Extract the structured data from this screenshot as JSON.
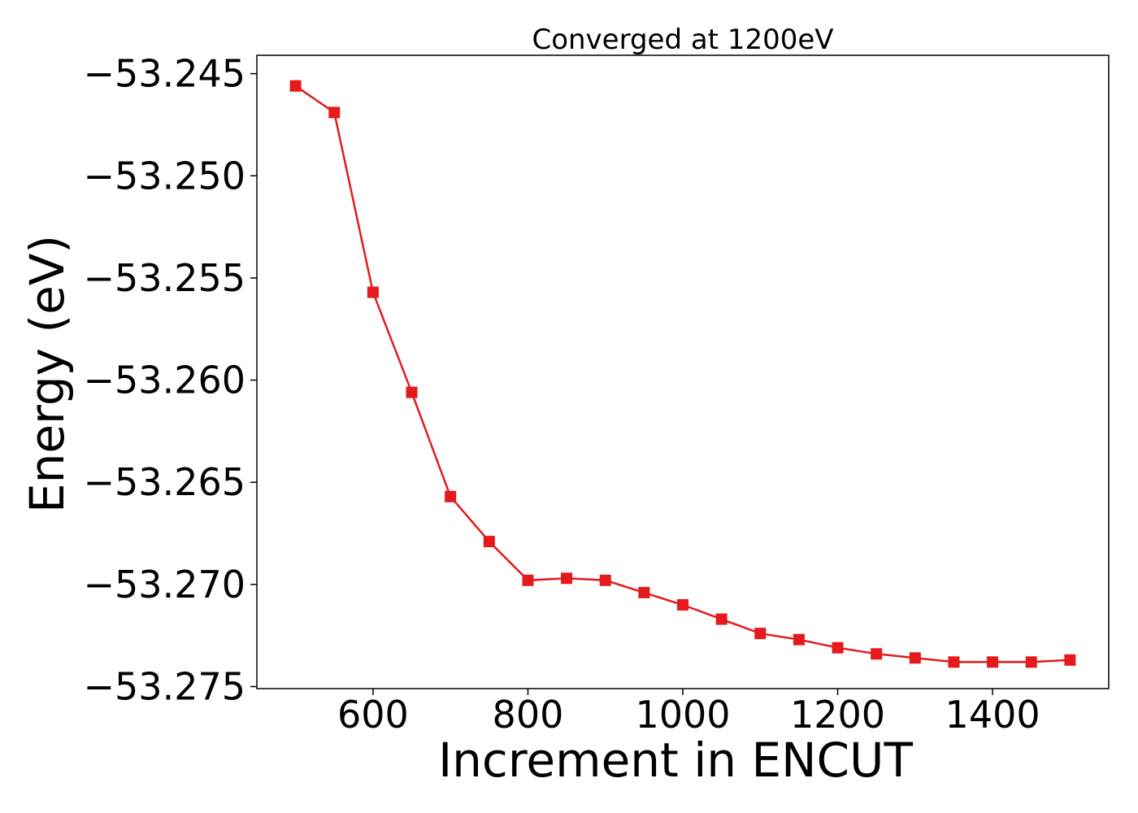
{
  "chart_data": {
    "type": "line",
    "title": "Converged at 1200eV",
    "xlabel": "Increment in ENCUT",
    "ylabel": "Energy (eV)",
    "xlim": [
      450,
      1550
    ],
    "ylim": [
      -53.2751,
      -53.2441
    ],
    "xticks": [
      600,
      800,
      1000,
      1200,
      1400
    ],
    "xtick_labels": [
      "600",
      "800",
      "1000",
      "1200",
      "1400"
    ],
    "yticks": [
      -53.275,
      -53.27,
      -53.265,
      -53.26,
      -53.255,
      -53.25,
      -53.245
    ],
    "ytick_labels": [
      "−53.275",
      "−53.270",
      "−53.265",
      "−53.260",
      "−53.255",
      "−53.250",
      "−53.245"
    ],
    "grid": false,
    "series": [
      {
        "color": "#e41a1c",
        "marker": "square",
        "x": [
          500,
          550,
          600,
          650,
          700,
          750,
          800,
          850,
          900,
          950,
          1000,
          1050,
          1100,
          1150,
          1200,
          1250,
          1300,
          1350,
          1400,
          1450,
          1500
        ],
        "y": [
          -53.2456,
          -53.2469,
          -53.2557,
          -53.2606,
          -53.2657,
          -53.2679,
          -53.2698,
          -53.2697,
          -53.2698,
          -53.2704,
          -53.271,
          -53.2717,
          -53.2724,
          -53.2727,
          -53.2731,
          -53.2734,
          -53.2736,
          -53.2738,
          -53.2738,
          -53.2738,
          -53.2737
        ]
      }
    ]
  }
}
